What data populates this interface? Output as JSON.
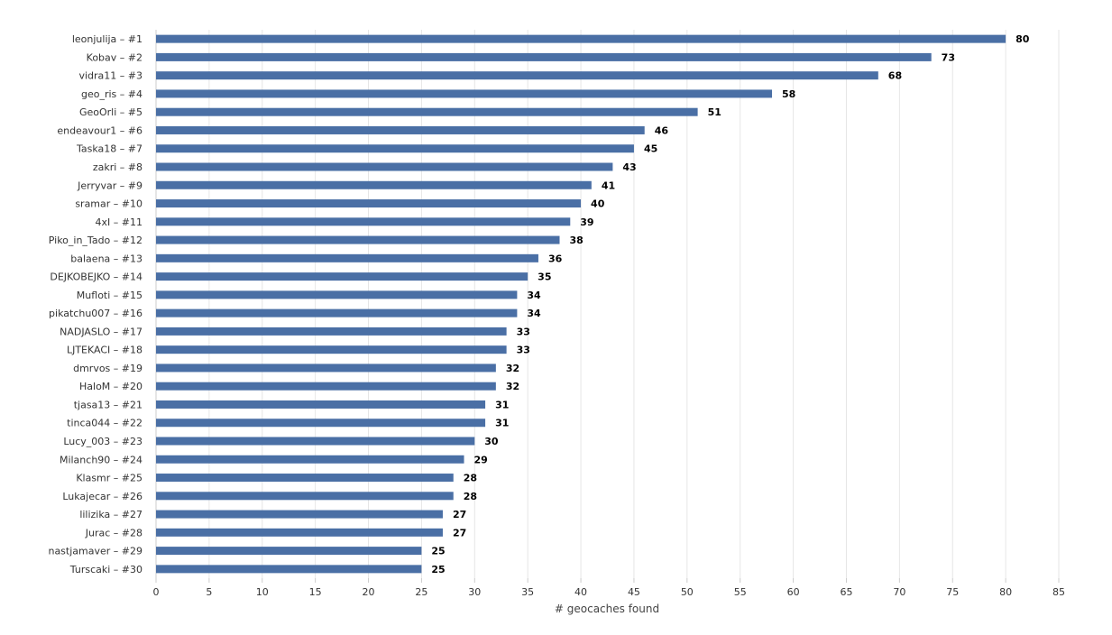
{
  "chart_data": {
    "type": "bar",
    "orientation": "horizontal",
    "xlabel": "# geocaches found",
    "ylabel": "",
    "xlim": [
      0,
      85
    ],
    "ticks": [
      0,
      5,
      10,
      15,
      20,
      25,
      30,
      35,
      40,
      45,
      50,
      55,
      60,
      65,
      70,
      75,
      80,
      85
    ],
    "grid": true,
    "bar_color": "#4a6fa5",
    "categories": [
      "leonjulija – #1",
      "Kobav – #2",
      "vidra11 – #3",
      "geo_ris – #4",
      "GeoOrli – #5",
      "endeavour1 – #6",
      "Taska18 – #7",
      "zakri – #8",
      "Jerryvar – #9",
      "sramar – #10",
      "4xI – #11",
      "Piko_in_Tado – #12",
      "balaena – #13",
      "DEJKOBEJKO – #14",
      "Mufloti – #15",
      "pikatchu007 – #16",
      "NADJASLO – #17",
      "LJTEKACI – #18",
      "dmrvos – #19",
      "HaloM – #20",
      "tjasa13 – #21",
      "tinca044 – #22",
      "Lucy_003 – #23",
      "Milanch90 – #24",
      "Klasmr – #25",
      "Lukajecar – #26",
      "lilizika – #27",
      "Jurac – #28",
      "nastjamaver – #29",
      "Turscaki – #30"
    ],
    "values": [
      80,
      73,
      68,
      58,
      51,
      46,
      45,
      43,
      41,
      40,
      39,
      38,
      36,
      35,
      34,
      34,
      33,
      33,
      32,
      32,
      31,
      31,
      30,
      29,
      28,
      28,
      27,
      27,
      25,
      25
    ]
  }
}
